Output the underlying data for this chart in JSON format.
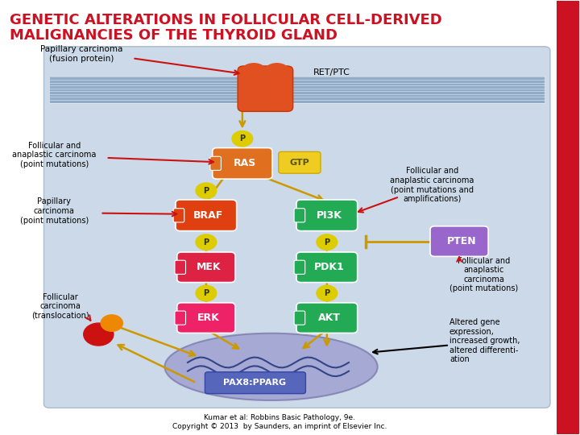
{
  "title_line1": "GENETIC ALTERATIONS IN FOLLICULAR CELL-DERIVED",
  "title_line2": "MALIGNANCIES OF THE THYROID GLAND",
  "title_color": "#cc1122",
  "title_fontsize": 13,
  "bg_color": "#ffffff",
  "diagram_bg": "#ccd9e8",
  "membrane_color": "#6699cc",
  "nucleus_color": "#9999cc",
  "caption": "Kumar et al: Robbins Basic Pathology, 9e.\nCopyright © 2013  by Saunders, an imprint of Elsevier Inc.",
  "right_bar_color": "#cc1122"
}
